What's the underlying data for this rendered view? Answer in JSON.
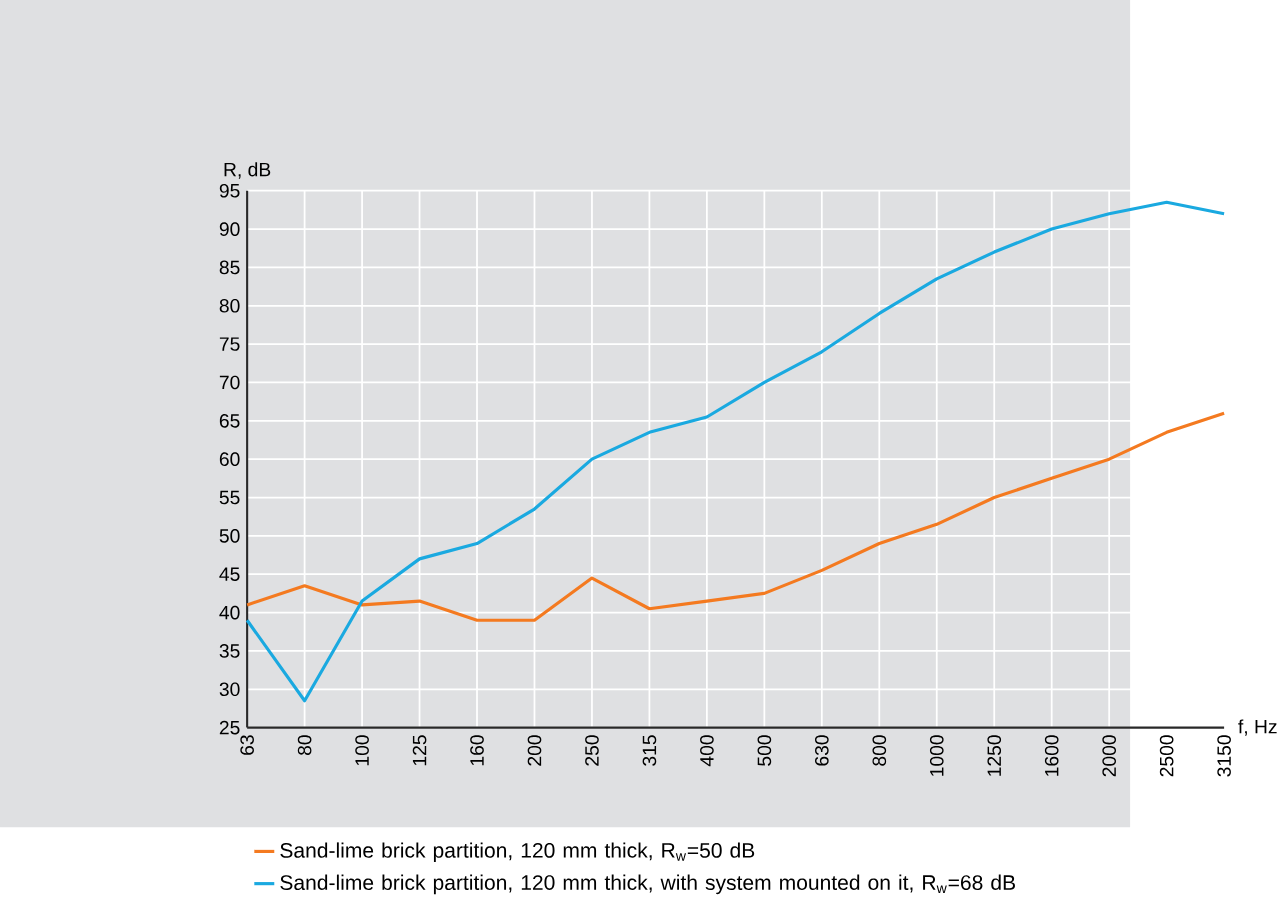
{
  "chart_data": {
    "type": "line",
    "xlabel": "f, Hz",
    "ylabel": "R, dB",
    "categories": [
      "63",
      "80",
      "100",
      "125",
      "160",
      "200",
      "250",
      "315",
      "400",
      "500",
      "630",
      "800",
      "1000",
      "1250",
      "1600",
      "2000",
      "2500",
      "3150"
    ],
    "series": [
      {
        "name": "Sand-lime brick partition, 120 mm thick, R$_{w}$=50 dB",
        "color": "#f47a20",
        "values": [
          41,
          43.5,
          41,
          41.5,
          39,
          39,
          44.5,
          40.5,
          41.5,
          42.5,
          45.5,
          49,
          51.5,
          55,
          57.5,
          60,
          63.5,
          66
        ]
      },
      {
        "name": "Sand-lime brick partition, 120 mm thick, with system mounted on it, R$_{w}$=68 dB",
        "color": "#1aa9e0",
        "values": [
          39,
          28.5,
          41.5,
          47,
          49,
          53.5,
          60,
          63.5,
          65.5,
          70,
          74,
          79,
          83.5,
          87,
          90,
          92,
          93.5,
          92
        ]
      }
    ],
    "ylim": [
      25,
      95
    ],
    "yticks": [
      25,
      30,
      35,
      40,
      45,
      50,
      55,
      60,
      65,
      70,
      75,
      80,
      85,
      90,
      95
    ],
    "grid": true,
    "legend": "bottom",
    "marker": "none",
    "line_style": "solid"
  }
}
